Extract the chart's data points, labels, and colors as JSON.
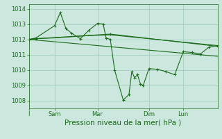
{
  "background_color": "#cce8de",
  "grid_color": "#9ec8b8",
  "line_color": "#1a6b1a",
  "ylim": [
    1007.5,
    1014.3
  ],
  "yticks": [
    1008,
    1009,
    1010,
    1011,
    1012,
    1013,
    1014
  ],
  "xlabel": "Pression niveau de la mer( hPa )",
  "xlabel_fontsize": 7.5,
  "tick_fontsize": 6,
  "xtick_labels": [
    "I",
    "Sam",
    "Mar",
    "Dim",
    "Lun"
  ],
  "xtick_positions": [
    0,
    18,
    48,
    84,
    108
  ],
  "xlim": [
    0,
    132
  ],
  "series0_x": [
    0,
    5,
    18,
    22,
    26,
    30,
    36,
    42,
    48,
    52,
    54,
    57,
    60,
    66,
    70,
    72,
    74,
    76,
    78,
    80,
    84,
    90,
    96,
    102,
    108,
    114,
    120,
    126,
    132
  ],
  "series0_y": [
    1012.0,
    1012.1,
    1012.9,
    1013.75,
    1012.7,
    1012.4,
    1012.05,
    1012.6,
    1013.05,
    1013.0,
    1012.1,
    1012.0,
    1010.0,
    1008.05,
    1008.4,
    1009.9,
    1009.5,
    1009.7,
    1009.1,
    1009.0,
    1010.1,
    1010.05,
    1009.9,
    1009.7,
    1011.2,
    1011.15,
    1011.05,
    1011.5,
    1011.6
  ],
  "series1_x": [
    0,
    5,
    57,
    132
  ],
  "series1_y": [
    1012.0,
    1012.05,
    1012.35,
    1011.55
  ],
  "series2_x": [
    0,
    132
  ],
  "series2_y": [
    1012.0,
    1010.9
  ],
  "series3_x": [
    0,
    5,
    18,
    42,
    57,
    132
  ],
  "series3_y": [
    1012.0,
    1012.05,
    1012.1,
    1012.25,
    1012.3,
    1011.6
  ]
}
